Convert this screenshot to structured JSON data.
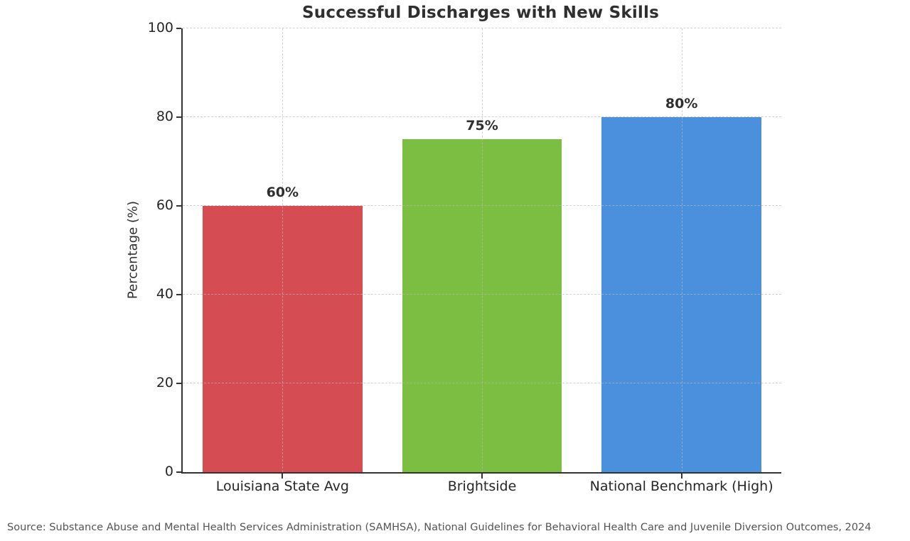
{
  "chart_data": {
    "type": "bar",
    "title": "Successful Discharges with New Skills",
    "categories": [
      "Louisiana State Avg",
      "Brightside",
      "National Benchmark (High)"
    ],
    "values": [
      60,
      75,
      80
    ],
    "value_labels": [
      "60%",
      "75%",
      "80%"
    ],
    "bar_colors": [
      "#d54c52",
      "#7cbe41",
      "#4a90dd"
    ],
    "xlabel": "",
    "ylabel": "Percentage (%)",
    "ylim": [
      0,
      100
    ],
    "yticks": [
      0,
      20,
      40,
      60,
      80,
      100
    ],
    "ytick_labels": [
      "0",
      "20",
      "40",
      "60",
      "80",
      "100"
    ],
    "grid": true,
    "grid_style": "dashed",
    "legend_position": "none",
    "bar_width_fraction": 0.8
  },
  "colors": {
    "background": "#ffffff",
    "axis_spine": "#333333",
    "title_text": "#2f2f2f",
    "tick_text": "#262626",
    "source_text": "#545454"
  },
  "source_note": "Source: Substance Abuse and Mental Health Services Administration (SAMHSA), National Guidelines for Behavioral Health Care and Juvenile Diversion Outcomes, 2024"
}
